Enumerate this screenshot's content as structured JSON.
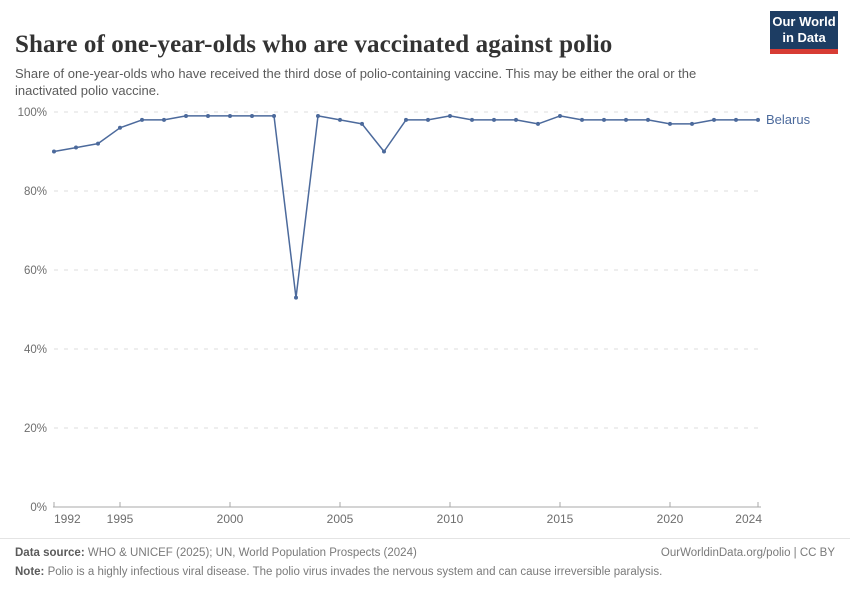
{
  "header": {
    "title": "Share of one-year-olds who are vaccinated against polio",
    "subtitle": "Share of one-year-olds who have received the third dose of polio-containing vaccine. This may be either the oral or the inactivated polio vaccine."
  },
  "logo": {
    "line1": "Our World",
    "line2": "in Data",
    "bg_color": "#1d3d63",
    "accent_color": "#d73c34"
  },
  "chart_data": {
    "type": "line",
    "title": "Share of one-year-olds who are vaccinated against polio",
    "x": [
      1992,
      1993,
      1994,
      1995,
      1996,
      1997,
      1998,
      1999,
      2000,
      2001,
      2002,
      2003,
      2004,
      2005,
      2006,
      2007,
      2008,
      2009,
      2010,
      2011,
      2012,
      2013,
      2014,
      2015,
      2016,
      2017,
      2018,
      2019,
      2020,
      2021,
      2022,
      2023,
      2024
    ],
    "series": [
      {
        "name": "Belarus",
        "color": "#4c6a9c",
        "values": [
          90,
          91,
          92,
          96,
          98,
          98,
          99,
          99,
          99,
          99,
          99,
          53,
          99,
          98,
          97,
          90,
          98,
          98,
          99,
          98,
          98,
          98,
          97,
          99,
          98,
          98,
          98,
          98,
          97,
          97,
          98,
          98,
          98
        ]
      }
    ],
    "xlabel": "",
    "ylabel": "",
    "xlim": [
      1992,
      2024
    ],
    "ylim": [
      0,
      100
    ],
    "xticks": [
      1992,
      1995,
      2000,
      2005,
      2010,
      2015,
      2020,
      2024
    ],
    "yticks": [
      0,
      20,
      40,
      60,
      80,
      100
    ],
    "ytick_suffix": "%",
    "grid": "horizontal-dashed",
    "legend_position": "end-of-line",
    "colors": {
      "gridline": "#dedede",
      "axis": "#a8a8a8",
      "tick_text": "#6e6e6e"
    }
  },
  "footer": {
    "datasource_label": "Data source:",
    "datasource_text": " WHO & UNICEF (2025); UN, World Population Prospects (2024)",
    "rights": "OurWorldinData.org/polio | CC BY",
    "note_label": "Note:",
    "note_text": " Polio is a highly infectious viral disease. The polio virus invades the nervous system and can cause irreversible paralysis."
  }
}
